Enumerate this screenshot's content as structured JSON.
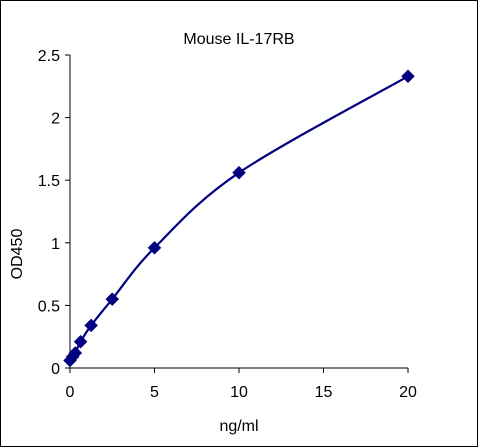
{
  "chart_data": {
    "type": "scatter",
    "title": "Mouse IL-17RB",
    "xlabel": "ng/ml",
    "ylabel": "OD450",
    "xlim": [
      0,
      20
    ],
    "ylim": [
      0,
      2.5
    ],
    "xticks": [
      0,
      5,
      10,
      15,
      20
    ],
    "yticks": [
      0,
      0.5,
      1,
      1.5,
      2,
      2.5
    ],
    "x_tick_labels": [
      "0",
      "5",
      "10",
      "15",
      "20"
    ],
    "y_tick_labels": [
      "0",
      "0.5",
      "1",
      "1.5",
      "2",
      "2.5"
    ],
    "grid": false,
    "legend": "none",
    "series": [
      {
        "x": [
          0,
          0.156,
          0.313,
          0.625,
          1.25,
          2.5,
          5,
          10,
          20
        ],
        "y": [
          0.06,
          0.09,
          0.12,
          0.21,
          0.34,
          0.55,
          0.96,
          1.56,
          2.33
        ],
        "marker": "diamond",
        "line": "smooth",
        "color": "#000080"
      }
    ]
  }
}
